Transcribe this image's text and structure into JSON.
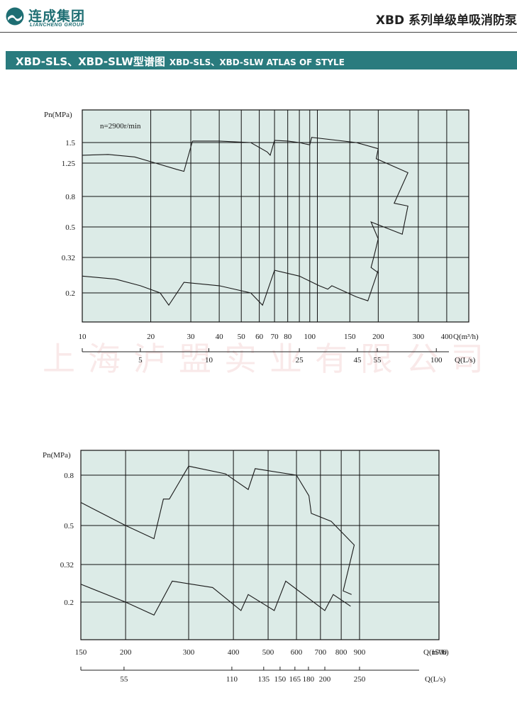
{
  "header": {
    "logo_cn": "连成集团",
    "logo_en": "LIANCHENG GROUP",
    "series_title": "XBD 系列单级单吸消防泵"
  },
  "banner": {
    "title_cn": "XBD-SLS、XBD-SLW型谱图",
    "title_en": "XBD-SLS、XBD-SLW ATLAS OF STYLE"
  },
  "watermark": "上海泸盟实业有限公司",
  "colors": {
    "banner": "#2a7b7e",
    "plot_bg": "#dcebe7",
    "grid": "#111111",
    "logo": "#1e6e73"
  },
  "chart_data": [
    {
      "type": "line",
      "annotation": "n=2900r/min",
      "ylabel": "Pn(MPa)",
      "xlabel": "Q(m³/h)",
      "xlabel2": "Q(L/s)",
      "x_scale": "log",
      "xlim": [
        10,
        500
      ],
      "ylim": [
        0.14,
        2.1
      ],
      "y_ticks": [
        1.5,
        1.25,
        0.8,
        0.5,
        0.32,
        0.2
      ],
      "y_tick_labels": [
        "1.5",
        "1.25",
        "0.8",
        "0.5",
        "0.32",
        "0.2"
      ],
      "x_ticks": [
        10,
        20,
        30,
        40,
        50,
        60,
        70,
        80,
        100,
        150,
        200,
        300,
        400
      ],
      "x_tick_labels": [
        "10",
        "20",
        "30",
        "40",
        "50",
        "60",
        "70",
        "80",
        "100",
        "150",
        "200",
        "300",
        "400"
      ],
      "x_extra_grid": [
        90,
        108
      ],
      "ls_ticks": [
        5,
        10,
        25,
        45,
        55,
        100
      ],
      "ls_tick_labels": [
        "5",
        "10",
        "25",
        "45",
        "55",
        "100"
      ],
      "series": [
        {
          "x": [
            10,
            13,
            17,
            21,
            26,
            28,
            30.5
          ],
          "y": [
            1.34,
            1.35,
            1.32,
            1.25,
            1.15,
            1.12,
            1.52
          ]
        },
        {
          "x": [
            30.5,
            40,
            55,
            65,
            67,
            70
          ],
          "y": [
            1.52,
            1.52,
            1.5,
            1.38,
            1.34,
            1.53
          ]
        },
        {
          "x": [
            70,
            80,
            90,
            96,
            100,
            102,
            160,
            200
          ],
          "y": [
            1.53,
            1.52,
            1.5,
            1.48,
            1.47,
            1.57,
            1.5,
            1.42
          ]
        },
        {
          "x": [
            200,
            196,
            270,
            235,
            270,
            255,
            186,
            200,
            192,
            186,
            201
          ],
          "y": [
            1.42,
            1.3,
            1.1,
            0.72,
            0.69,
            0.45,
            0.54,
            0.42,
            0.33,
            0.28,
            0.26
          ]
        },
        {
          "x": [
            10,
            14,
            18,
            22,
            24,
            28,
            40,
            55,
            62,
            70,
            90,
            110,
            120,
            125,
            160,
            180,
            200
          ],
          "y": [
            0.25,
            0.24,
            0.22,
            0.2,
            0.17,
            0.23,
            0.22,
            0.2,
            0.17,
            0.27,
            0.25,
            0.22,
            0.21,
            0.22,
            0.19,
            0.18,
            0.27
          ]
        }
      ]
    },
    {
      "type": "line",
      "ylabel": "Pn(MPa)",
      "xlabel": "Q(m³/h)",
      "xlabel2": "Q(L/s)",
      "x_scale": "log",
      "xlim": [
        150,
        1500
      ],
      "ylim": [
        0.15,
        0.95
      ],
      "y_ticks": [
        0.8,
        0.5,
        0.32,
        0.2
      ],
      "y_tick_labels": [
        "0.8",
        "0.5",
        "0.32",
        "0.2"
      ],
      "x_ticks": [
        150,
        200,
        300,
        400,
        500,
        600,
        700,
        800,
        900,
        1500
      ],
      "x_tick_labels": [
        "150",
        "200",
        "300",
        "400",
        "500",
        "600",
        "700",
        "800",
        "900",
        "1500"
      ],
      "ls_ticks": [
        55,
        110,
        135,
        150,
        165,
        180,
        200,
        250
      ],
      "ls_tick_labels": [
        "55",
        "110",
        "135",
        "150",
        "165",
        "180",
        "200",
        "250"
      ],
      "series": [
        {
          "x": [
            150,
            200,
            240,
            255,
            265,
            300,
            380,
            440,
            460,
            600,
            650,
            660,
            750,
            870,
            810,
            855
          ],
          "y": [
            0.62,
            0.5,
            0.43,
            0.64,
            0.64,
            0.87,
            0.81,
            0.7,
            0.85,
            0.8,
            0.66,
            0.56,
            0.52,
            0.4,
            0.23,
            0.22
          ]
        },
        {
          "x": [
            150,
            200,
            240,
            270,
            350,
            420,
            440,
            520,
            560,
            720,
            760,
            850
          ],
          "y": [
            0.25,
            0.2,
            0.17,
            0.26,
            0.24,
            0.18,
            0.22,
            0.18,
            0.26,
            0.18,
            0.22,
            0.19
          ]
        }
      ]
    }
  ]
}
